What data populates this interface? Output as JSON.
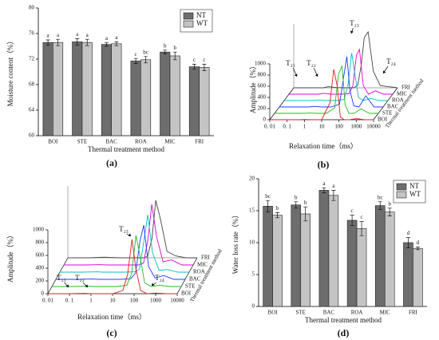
{
  "chart_data": [
    {
      "type": "bar",
      "panel": "(a)",
      "ylabel": "Moisture content（%）",
      "xlabel": "Thermal treatment method",
      "categories": [
        "BOI",
        "STE",
        "BAC",
        "ROA",
        "MIC",
        "FRI"
      ],
      "series": [
        {
          "name": "NT",
          "color": "#6d6d6d",
          "values": [
            74.6,
            74.7,
            74.3,
            71.7,
            73.1,
            70.8
          ],
          "errors": [
            0.4,
            0.5,
            0.3,
            0.4,
            0.3,
            0.4
          ],
          "letters": [
            "a",
            "a",
            "a",
            "c",
            "b",
            "c"
          ]
        },
        {
          "name": "WT",
          "color": "#c4c4c4",
          "values": [
            74.6,
            74.6,
            74.4,
            71.9,
            72.5,
            70.7
          ],
          "errors": [
            0.5,
            0.5,
            0.3,
            0.5,
            0.6,
            0.5
          ],
          "letters": [
            "a",
            "a",
            "a",
            "bc",
            "b",
            "c"
          ]
        }
      ],
      "ylim": [
        60,
        80
      ],
      "yticks": [
        60,
        64,
        68,
        72,
        76,
        80
      ],
      "legend": "top-right"
    },
    {
      "type": "line",
      "panel": "(b)",
      "ylabel": "Amplitude（%）",
      "xlabel": "Relaxation time（ms）",
      "zlabel": "Thermal treatment method",
      "xscale": "log",
      "x": [
        0.01,
        0.1,
        0.5,
        1,
        3,
        10,
        30,
        50,
        80,
        120,
        200,
        400,
        1000,
        3000,
        10000
      ],
      "xlim": [
        0.01,
        10000
      ],
      "xticks": [
        {
          "value": 0.01,
          "label": "0. 01"
        },
        {
          "value": 0.1,
          "label": "0. 1"
        },
        1,
        10,
        100,
        1000,
        10000
      ],
      "ylim": [
        0,
        1000
      ],
      "yticks": [
        0,
        200,
        400,
        600,
        800,
        1000
      ],
      "series": [
        {
          "name": "BOI",
          "color": "#e41a1c",
          "values": [
            0,
            0,
            0,
            5,
            0,
            0,
            300,
            900,
            600,
            50,
            0,
            0,
            20,
            0,
            0
          ]
        },
        {
          "name": "STE",
          "color": "#22b822",
          "values": [
            0,
            0,
            0,
            5,
            0,
            0,
            100,
            700,
            850,
            150,
            0,
            0,
            80,
            0,
            0
          ]
        },
        {
          "name": "BAC",
          "color": "#1a3cff",
          "values": [
            0,
            0,
            0,
            10,
            0,
            0,
            50,
            500,
            900,
            300,
            20,
            0,
            200,
            0,
            0
          ]
        },
        {
          "name": "ROA",
          "color": "#00c0c0",
          "values": [
            0,
            0,
            0,
            10,
            0,
            0,
            20,
            300,
            850,
            500,
            50,
            0,
            40,
            0,
            0
          ]
        },
        {
          "name": "MIC",
          "color": "#e000e0",
          "values": [
            0,
            0,
            0,
            15,
            0,
            0,
            10,
            150,
            700,
            800,
            150,
            0,
            60,
            0,
            0
          ]
        },
        {
          "name": "FRI",
          "color": "#444444",
          "values": [
            0,
            0,
            0,
            20,
            5,
            0,
            0,
            50,
            400,
            900,
            1000,
            300,
            40,
            20,
            0
          ]
        }
      ],
      "annotations": [
        "T₂₁",
        "T₂₂",
        "T₂₃",
        "T₂₄"
      ]
    },
    {
      "type": "line",
      "panel": "(c)",
      "ylabel": "Amplitude（%）",
      "xlabel": "Relaxation time（ms）",
      "zlabel": "Thermal treatment method",
      "xscale": "log",
      "x": [
        0.01,
        0.1,
        0.5,
        1,
        3,
        10,
        30,
        50,
        80,
        120,
        200,
        400,
        1000,
        3000,
        10000
      ],
      "xlim": [
        0.01,
        10000
      ],
      "xticks": [
        {
          "value": 0.01,
          "label": "0. 01"
        },
        {
          "value": 0.1,
          "label": "0. 1"
        },
        1,
        10,
        100,
        1000,
        10000
      ],
      "ylim": [
        0,
        1000
      ],
      "yticks": [
        0,
        200,
        400,
        600,
        800,
        1000
      ],
      "series": [
        {
          "name": "BOI",
          "color": "#e41a1c",
          "values": [
            0,
            0,
            5,
            0,
            0,
            0,
            50,
            300,
            850,
            400,
            50,
            0,
            10,
            0,
            0
          ]
        },
        {
          "name": "STE",
          "color": "#22b822",
          "values": [
            0,
            0,
            5,
            0,
            0,
            0,
            20,
            200,
            800,
            500,
            60,
            0,
            20,
            0,
            0
          ]
        },
        {
          "name": "BAC",
          "color": "#1a3cff",
          "values": [
            0,
            0,
            5,
            0,
            0,
            0,
            10,
            100,
            600,
            850,
            200,
            20,
            60,
            0,
            0
          ]
        },
        {
          "name": "ROA",
          "color": "#00c0c0",
          "values": [
            0,
            0,
            5,
            0,
            0,
            0,
            5,
            50,
            500,
            900,
            300,
            30,
            40,
            0,
            0
          ]
        },
        {
          "name": "MIC",
          "color": "#e000e0",
          "values": [
            0,
            0,
            5,
            0,
            0,
            0,
            0,
            30,
            400,
            950,
            450,
            50,
            80,
            0,
            0
          ]
        },
        {
          "name": "FRI",
          "color": "#444444",
          "values": [
            0,
            0,
            10,
            5,
            0,
            0,
            0,
            20,
            300,
            900,
            600,
            100,
            30,
            0,
            0
          ]
        }
      ],
      "annotations": [
        "T₂₁",
        "T₂₂",
        "T₂₃",
        "T₂₄"
      ]
    },
    {
      "type": "bar",
      "panel": "(d)",
      "ylabel": "Water loss rate（%）",
      "xlabel": "Thermal treatment method",
      "categories": [
        "BOI",
        "STE",
        "BAC",
        "ROA",
        "MIC",
        "FRI"
      ],
      "series": [
        {
          "name": "NT",
          "color": "#6d6d6d",
          "values": [
            15.7,
            15.9,
            18.2,
            13.5,
            15.8,
            10.0
          ],
          "errors": [
            0.9,
            0.5,
            0.4,
            0.8,
            0.6,
            0.8
          ],
          "letters": [
            "bc",
            "b",
            "a",
            "c",
            "bc",
            "d"
          ]
        },
        {
          "name": "WT",
          "color": "#c4c4c4",
          "values": [
            14.3,
            14.5,
            17.4,
            12.2,
            14.8,
            9.1
          ],
          "errors": [
            0.4,
            1.1,
            0.8,
            1.1,
            0.6,
            0.2
          ],
          "letters": [
            "b",
            "b",
            "a",
            "c",
            "b",
            "d"
          ]
        }
      ],
      "ylim": [
        0,
        20
      ],
      "yticks": [
        0,
        5,
        10,
        15,
        20
      ],
      "legend": "top-right"
    }
  ]
}
